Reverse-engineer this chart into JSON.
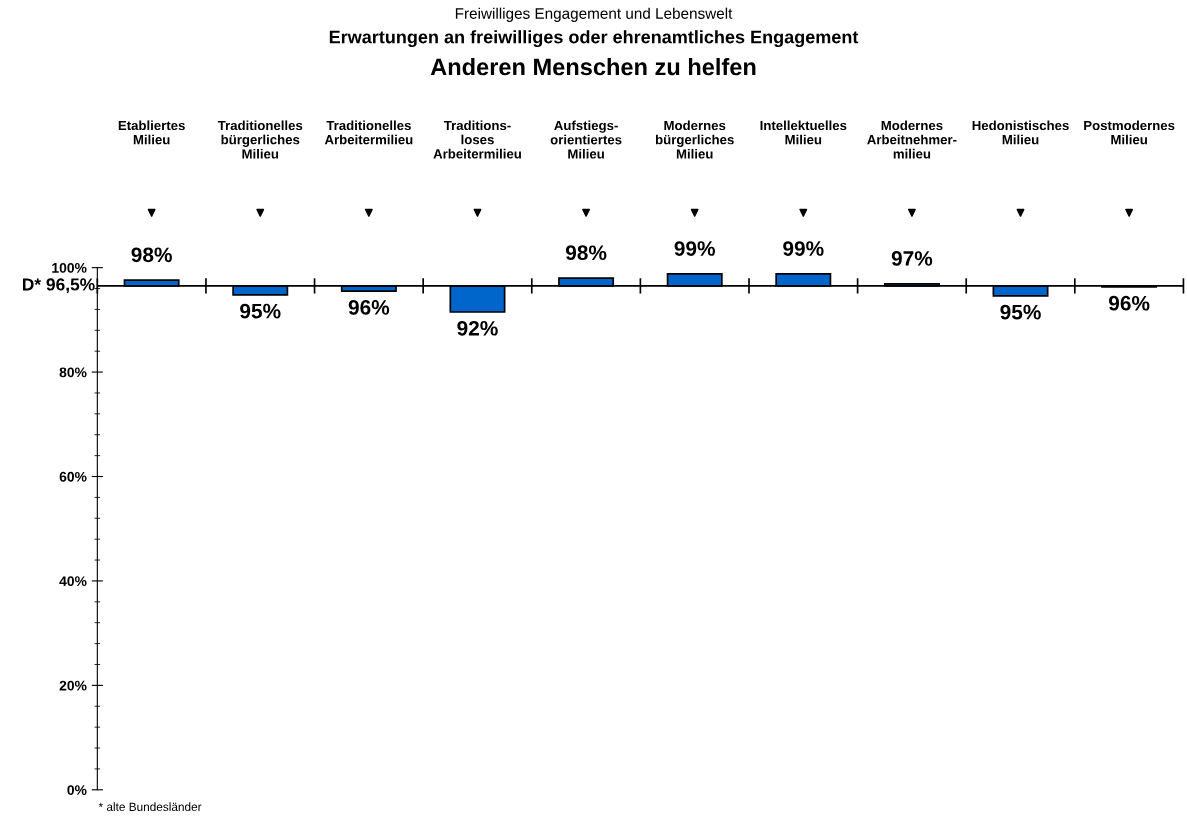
{
  "chart_data": {
    "type": "bar",
    "title": "Erwartungen an freiwilliges oder ehrenamtliches Engagement",
    "subtitle": "Anderen Menschen zu helfen",
    "categories": [
      "Etabliertes\nMilieu",
      "Traditionelles\nbürgerliches\nMilieu",
      "Traditionelles\nArbeitermilieu",
      "Traditions-\nloses\nArbeitermilieu",
      "Aufstiegs-\norientiertes\nMilieu",
      "Modernes\nbürgerliches\nMilieu",
      "Intellektuelles\nMilieu",
      "Modernes\nArbeitnehmer-\nmilieu",
      "Hedonistisches\nMilieu",
      "Postmodernes\nMilieu"
    ],
    "base": [
      96.5,
      96.5,
      96.5,
      96.5,
      96.5,
      96.5,
      96.5,
      96.5,
      96.5,
      96.5
    ],
    "values": [
      1.1,
      -1.7,
      -1.0,
      -5.0,
      1.5,
      2.3,
      2.3,
      0.4,
      -1.9,
      -0.2
    ],
    "value_labels": [
      "98%",
      "95%",
      "96%",
      "92%",
      "98%",
      "99%",
      "99%",
      "97%",
      "95%",
      "96%"
    ],
    "color": "#0066cc",
    "ylim": [
      0,
      100
    ],
    "yticks": [
      {
        "value": 0,
        "label": "0%"
      },
      {
        "value": 20,
        "label": "20%"
      },
      {
        "value": 40,
        "label": "40%"
      },
      {
        "value": 60,
        "label": "60%"
      },
      {
        "value": 80,
        "label": "80%"
      },
      {
        "value": 100,
        "label": "100%"
      }
    ],
    "ref_lines": [
      {
        "axis": "y",
        "value": 96.5,
        "label": "D* 96,5%",
        "color": "#000000"
      }
    ],
    "annotations": [
      "Freiwilliges Engagement und Lebenswelt",
      "* alte Bundesländer"
    ],
    "grid": false,
    "legend": false
  }
}
